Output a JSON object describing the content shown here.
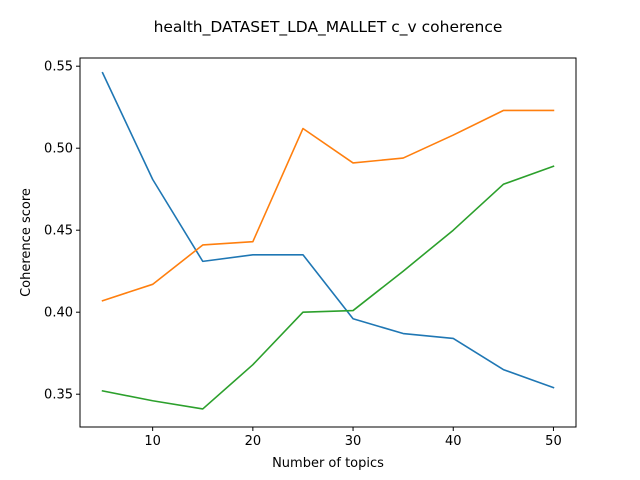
{
  "chart_data": {
    "type": "line",
    "title": "health_DATASET_LDA_MALLET c_v coherence",
    "xlabel": "Number of topics",
    "ylabel": "Coherence score",
    "x": [
      5,
      10,
      15,
      20,
      25,
      30,
      35,
      40,
      45,
      50
    ],
    "xlim": [
      2.75,
      52.25
    ],
    "ylim": [
      0.33,
      0.555
    ],
    "xticks": [
      10,
      20,
      30,
      40,
      50
    ],
    "yticks": [
      0.35,
      0.4,
      0.45,
      0.5,
      0.55
    ],
    "ytick_labels": [
      "0.35",
      "0.40",
      "0.45",
      "0.50",
      "0.55"
    ],
    "grid": false,
    "legend": "none",
    "series": [
      {
        "color": "#1f77b4",
        "values": [
          0.546,
          0.481,
          0.431,
          0.435,
          0.435,
          0.396,
          0.387,
          0.384,
          0.365,
          0.354
        ]
      },
      {
        "color": "#ff7f0e",
        "values": [
          0.407,
          0.417,
          0.441,
          0.443,
          0.512,
          0.491,
          0.494,
          0.508,
          0.523,
          0.523
        ]
      },
      {
        "color": "#2ca02c",
        "values": [
          0.352,
          0.346,
          0.341,
          0.368,
          0.4,
          0.401,
          0.425,
          0.45,
          0.478,
          0.489
        ]
      }
    ]
  }
}
